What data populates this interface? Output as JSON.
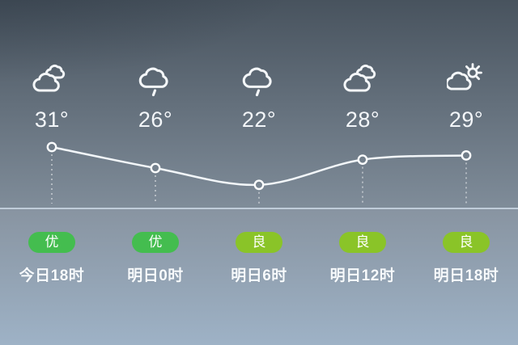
{
  "theme": {
    "bg_top": "#48535e",
    "bg_mid": "#7f8c99",
    "bg_lower_top": "#8894a1",
    "bg_bottom": "#9eb2c6",
    "line_color": "#f2f6f9",
    "divider_color": "rgba(255,255,255,0.34)",
    "aqi_excellent_color": "#44bd4f",
    "aqi_good_color": "#8ac428"
  },
  "forecast": {
    "points": [
      {
        "time": "今日18时",
        "temp": "31°",
        "temp_value": 31,
        "icon": "cloudy",
        "aqi": "优",
        "aqi_color": "#44bd4f"
      },
      {
        "time": "明日0时",
        "temp": "26°",
        "temp_value": 26,
        "icon": "light-rain",
        "aqi": "优",
        "aqi_color": "#44bd4f"
      },
      {
        "time": "明日6时",
        "temp": "22°",
        "temp_value": 22,
        "icon": "light-rain",
        "aqi": "良",
        "aqi_color": "#8ac428"
      },
      {
        "time": "明日12时",
        "temp": "28°",
        "temp_value": 28,
        "icon": "cloudy",
        "aqi": "良",
        "aqi_color": "#8ac428"
      },
      {
        "time": "明日18时",
        "temp": "29°",
        "temp_value": 29,
        "icon": "partly-sunny",
        "aqi": "良",
        "aqi_color": "#8ac428"
      }
    ]
  },
  "chart_data": {
    "type": "line",
    "categories": [
      "今日18时",
      "明日0时",
      "明日6时",
      "明日12时",
      "明日18时"
    ],
    "values": [
      31,
      26,
      22,
      28,
      29
    ],
    "unit": "°",
    "markers": true,
    "grid": false,
    "legend": "none",
    "annotations": [
      "优",
      "优",
      "良",
      "良",
      "良"
    ]
  }
}
